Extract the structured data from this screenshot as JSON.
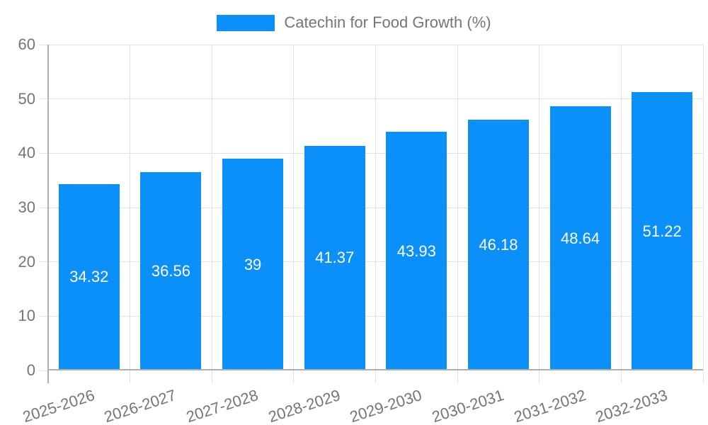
{
  "legend": {
    "items": [
      {
        "label": "Catechin for Food Growth (%)",
        "color": "#0a90f8"
      }
    ]
  },
  "chart_data": {
    "type": "bar",
    "title": "Catechin for Food Growth (%)",
    "categories": [
      "2025-2026",
      "2026-2027",
      "2027-2028",
      "2028-2029",
      "2029-2030",
      "2030-2031",
      "2031-2032",
      "2032-2033"
    ],
    "values": [
      34.32,
      36.56,
      39,
      41.37,
      43.93,
      46.18,
      48.64,
      51.22
    ],
    "xlabel": "",
    "ylabel": "",
    "ylim": [
      0,
      60
    ],
    "y_ticks": [
      0,
      10,
      20,
      30,
      40,
      50,
      60
    ],
    "grid": true,
    "legend_position": "top",
    "colors": {
      "bar": "#0a90f8",
      "value_label": "#ffffff",
      "axis_label": "#757575",
      "gridline": "#e2e2e2",
      "axis_line": "#aeaeae"
    }
  }
}
